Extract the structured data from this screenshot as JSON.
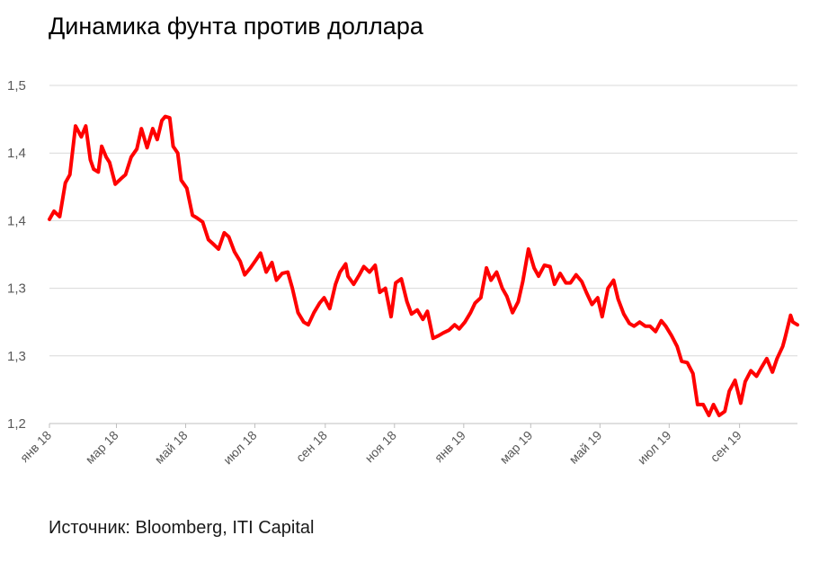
{
  "chart_data": {
    "type": "line",
    "title": "Динамика фунта против доллара",
    "xlabel": "",
    "ylabel": "",
    "source": "Источник: Bloomberg, ITI Capital",
    "y_tick_labels": [
      "1,2",
      "1,3",
      "1,3",
      "1,4",
      "1,4",
      "1,5"
    ],
    "y_tick_values": [
      1.2,
      1.25,
      1.3,
      1.35,
      1.4,
      1.45
    ],
    "ylim": [
      1.2,
      1.45
    ],
    "x_tick_labels": [
      "янв 18",
      "мар 18",
      "май 18",
      "июл 18",
      "сен 18",
      "ноя 18",
      "янв 19",
      "мар 19",
      "май 19",
      "июл 19",
      "сен 19"
    ],
    "x_tick_dates": [
      "2018-01-01",
      "2018-03-01",
      "2018-05-01",
      "2018-07-01",
      "2018-09-01",
      "2018-11-01",
      "2019-01-01",
      "2019-03-01",
      "2019-05-01",
      "2019-07-01",
      "2019-09-01"
    ],
    "xlim": [
      "2018-01-01",
      "2019-10-22"
    ],
    "grid": "horizontal",
    "legend": "none",
    "line_color": "#ff0000",
    "series": [
      {
        "x": [
          "2018-01-01",
          "2018-01-05",
          "2018-01-10",
          "2018-01-15",
          "2018-01-19",
          "2018-01-24",
          "2018-01-29",
          "2018-02-02",
          "2018-02-06",
          "2018-02-09",
          "2018-02-13",
          "2018-02-16",
          "2018-02-20",
          "2018-02-23",
          "2018-02-28",
          "2018-03-05",
          "2018-03-09",
          "2018-03-14",
          "2018-03-19",
          "2018-03-23",
          "2018-03-28",
          "2018-04-02",
          "2018-04-06",
          "2018-04-10",
          "2018-04-13",
          "2018-04-17",
          "2018-04-20",
          "2018-04-24",
          "2018-04-27",
          "2018-05-02",
          "2018-05-07",
          "2018-05-11",
          "2018-05-16",
          "2018-05-21",
          "2018-05-25",
          "2018-05-30",
          "2018-06-04",
          "2018-06-08",
          "2018-06-13",
          "2018-06-18",
          "2018-06-22",
          "2018-06-27",
          "2018-07-02",
          "2018-07-06",
          "2018-07-11",
          "2018-07-16",
          "2018-07-20",
          "2018-07-25",
          "2018-07-30",
          "2018-08-03",
          "2018-08-08",
          "2018-08-13",
          "2018-08-17",
          "2018-08-22",
          "2018-08-27",
          "2018-08-31",
          "2018-09-05",
          "2018-09-10",
          "2018-09-14",
          "2018-09-19",
          "2018-09-21",
          "2018-09-26",
          "2018-10-01",
          "2018-10-05",
          "2018-10-10",
          "2018-10-15",
          "2018-10-19",
          "2018-10-24",
          "2018-10-29",
          "2018-11-02",
          "2018-11-07",
          "2018-11-12",
          "2018-11-16",
          "2018-11-21",
          "2018-11-26",
          "2018-11-30",
          "2018-12-05",
          "2018-12-10",
          "2018-12-14",
          "2018-12-19",
          "2018-12-24",
          "2018-12-28",
          "2019-01-02",
          "2019-01-07",
          "2019-01-11",
          "2019-01-16",
          "2019-01-21",
          "2019-01-25",
          "2019-01-30",
          "2019-02-04",
          "2019-02-08",
          "2019-02-13",
          "2019-02-18",
          "2019-02-22",
          "2019-02-27",
          "2019-03-04",
          "2019-03-08",
          "2019-03-13",
          "2019-03-18",
          "2019-03-22",
          "2019-03-27",
          "2019-04-01",
          "2019-04-05",
          "2019-04-10",
          "2019-04-15",
          "2019-04-19",
          "2019-04-24",
          "2019-04-29",
          "2019-05-03",
          "2019-05-08",
          "2019-05-13",
          "2019-05-17",
          "2019-05-22",
          "2019-05-27",
          "2019-05-31",
          "2019-06-05",
          "2019-06-10",
          "2019-06-14",
          "2019-06-19",
          "2019-06-24",
          "2019-06-28",
          "2019-07-03",
          "2019-07-08",
          "2019-07-12",
          "2019-07-17",
          "2019-07-22",
          "2019-07-26",
          "2019-07-31",
          "2019-08-05",
          "2019-08-09",
          "2019-08-14",
          "2019-08-19",
          "2019-08-23",
          "2019-08-28",
          "2019-09-02",
          "2019-09-06",
          "2019-09-11",
          "2019-09-16",
          "2019-09-20",
          "2019-09-25",
          "2019-09-30",
          "2019-10-04",
          "2019-10-09",
          "2019-10-11",
          "2019-10-16",
          "2019-10-18",
          "2019-10-22"
        ],
        "values": [
          1.351,
          1.357,
          1.353,
          1.378,
          1.384,
          1.42,
          1.412,
          1.42,
          1.395,
          1.388,
          1.386,
          1.405,
          1.397,
          1.393,
          1.377,
          1.381,
          1.384,
          1.397,
          1.403,
          1.418,
          1.404,
          1.418,
          1.41,
          1.424,
          1.427,
          1.426,
          1.405,
          1.4,
          1.38,
          1.374,
          1.354,
          1.352,
          1.349,
          1.336,
          1.333,
          1.329,
          1.341,
          1.338,
          1.327,
          1.32,
          1.31,
          1.315,
          1.321,
          1.326,
          1.312,
          1.319,
          1.306,
          1.311,
          1.312,
          1.3,
          1.282,
          1.275,
          1.273,
          1.282,
          1.289,
          1.293,
          1.285,
          1.303,
          1.312,
          1.318,
          1.309,
          1.303,
          1.31,
          1.316,
          1.312,
          1.317,
          1.297,
          1.3,
          1.279,
          1.304,
          1.307,
          1.29,
          1.281,
          1.284,
          1.277,
          1.283,
          1.263,
          1.265,
          1.267,
          1.269,
          1.273,
          1.27,
          1.275,
          1.282,
          1.289,
          1.293,
          1.315,
          1.306,
          1.312,
          1.3,
          1.294,
          1.282,
          1.29,
          1.305,
          1.329,
          1.315,
          1.309,
          1.317,
          1.316,
          1.303,
          1.311,
          1.304,
          1.304,
          1.31,
          1.305,
          1.297,
          1.288,
          1.293,
          1.279,
          1.3,
          1.306,
          1.292,
          1.281,
          1.274,
          1.272,
          1.275,
          1.272,
          1.272,
          1.268,
          1.276,
          1.272,
          1.265,
          1.257,
          1.246,
          1.245,
          1.237,
          1.214,
          1.214,
          1.206,
          1.214,
          1.206,
          1.209,
          1.224,
          1.232,
          1.215,
          1.231,
          1.239,
          1.235,
          1.241,
          1.248,
          1.238,
          1.248,
          1.257,
          1.263,
          1.28,
          1.275,
          1.273
        ]
      }
    ]
  }
}
